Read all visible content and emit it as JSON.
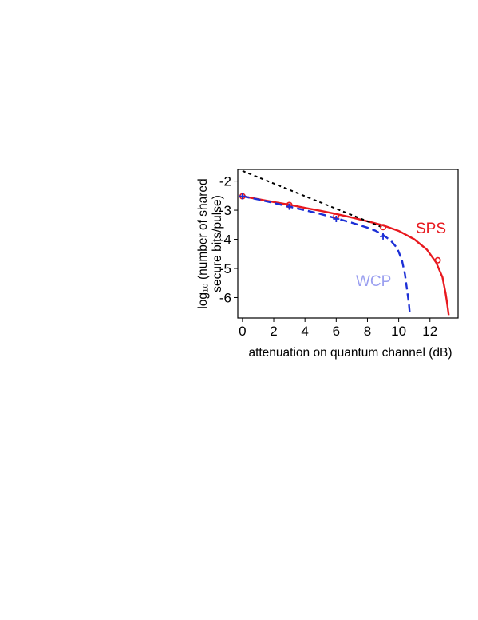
{
  "chart_data": {
    "type": "line",
    "xlabel": "attenuation on quantum channel (dB)",
    "ylabel_line1": "log₁₀ (number of shared",
    "ylabel_line2": "secure bits/pulse)",
    "xlim": [
      -0.3,
      13.8
    ],
    "ylim": [
      -6.7,
      -1.6
    ],
    "xticks": [
      0,
      2,
      4,
      6,
      8,
      10,
      12
    ],
    "yticks": [
      -2,
      -3,
      -4,
      -5,
      -6
    ],
    "grid": false,
    "series": [
      {
        "name": "SPS",
        "color": "#e8191f",
        "style": "solid",
        "x": [
          0,
          1,
          2,
          3,
          4,
          5,
          6,
          7,
          8,
          9,
          10,
          11,
          11.8,
          12.4,
          12.8,
          13.0,
          13.1,
          13.2
        ],
        "y": [
          -2.52,
          -2.62,
          -2.72,
          -2.81,
          -2.92,
          -3.02,
          -3.13,
          -3.25,
          -3.38,
          -3.52,
          -3.71,
          -4.0,
          -4.35,
          -4.8,
          -5.3,
          -5.85,
          -6.2,
          -6.6
        ],
        "markers": {
          "shape": "circle",
          "x": [
            0,
            3,
            6,
            9,
            12.5
          ],
          "y": [
            -2.52,
            -2.82,
            -3.2,
            -3.58,
            -4.72
          ]
        }
      },
      {
        "name": "WCP",
        "color": "#1c2fd6",
        "label_color": "#9a9ff0",
        "style": "dashed",
        "x": [
          0,
          1,
          2,
          3,
          4,
          5,
          6,
          7,
          8,
          8.5,
          9,
          9.5,
          9.9,
          10.2,
          10.4,
          10.55,
          10.65,
          10.72
        ],
        "y": [
          -2.52,
          -2.63,
          -2.75,
          -2.88,
          -3.0,
          -3.13,
          -3.28,
          -3.43,
          -3.6,
          -3.7,
          -3.85,
          -4.05,
          -4.3,
          -4.7,
          -5.2,
          -5.8,
          -6.2,
          -6.6
        ],
        "markers": {
          "shape": "plus",
          "x": [
            0,
            3,
            6,
            9
          ],
          "y": [
            -2.52,
            -2.88,
            -3.3,
            -3.9
          ]
        }
      },
      {
        "name": "",
        "color": "#000000",
        "style": "dotted",
        "x": [
          0,
          9
        ],
        "y": [
          -1.65,
          -3.6
        ]
      }
    ]
  }
}
